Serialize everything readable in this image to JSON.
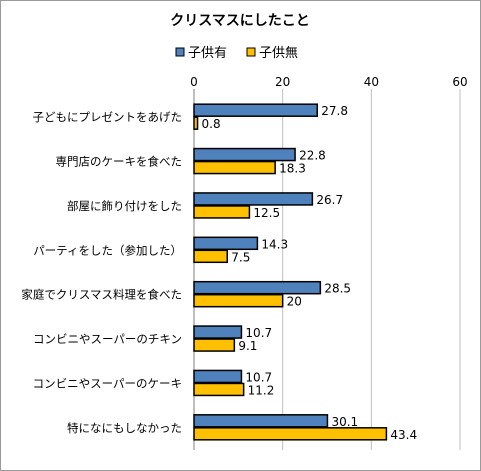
{
  "chart_data": {
    "type": "bar",
    "orientation": "horizontal",
    "title": "クリスマスにしたこと",
    "categories": [
      "子どもにプレゼントをあげた",
      "専門店のケーキを食べた",
      "部屋に飾り付けをした",
      "パーティをした（参加した）",
      "家庭でクリスマス料理を食べた",
      "コンビニやスーパーのチキン",
      "コンビニやスーパーのケーキ",
      "特になにもしなかった"
    ],
    "series": [
      {
        "name": "子供有",
        "color": "#4F81BD",
        "values": [
          27.8,
          22.8,
          26.7,
          14.3,
          28.5,
          10.7,
          10.7,
          30.1
        ],
        "labels": [
          "27.8",
          "22.8",
          "26.7",
          "14.3",
          "28.5",
          "10.7",
          "10.7",
          "30.1"
        ]
      },
      {
        "name": "子供無",
        "color": "#FFC000",
        "values": [
          0.8,
          18.3,
          12.5,
          7.5,
          20,
          9.1,
          11.2,
          43.4
        ],
        "labels": [
          "0.8",
          "18.3",
          "12.5",
          "7.5",
          "20",
          "9.1",
          "11.2",
          "43.4"
        ]
      }
    ],
    "xlim": [
      0,
      60
    ],
    "ticks": [
      "0",
      "20",
      "40",
      "60"
    ],
    "grid": true,
    "legend_position": "top"
  }
}
